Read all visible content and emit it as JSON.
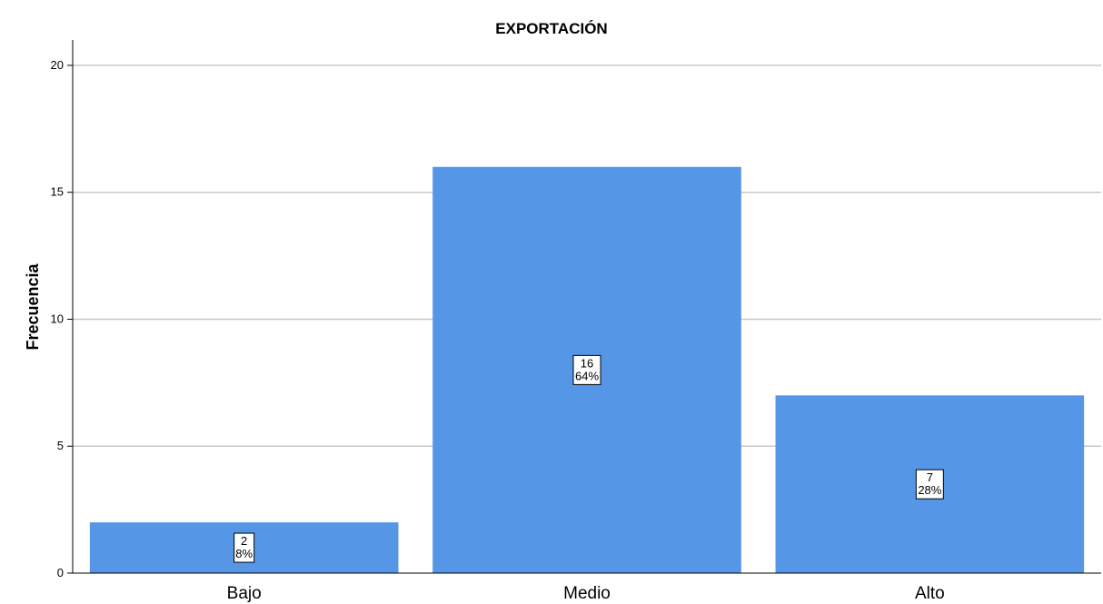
{
  "chart_data": {
    "type": "bar",
    "title": "EXPORTACIÓN",
    "xlabel": "",
    "ylabel": "Frecuencia",
    "categories": [
      "Bajo",
      "Medio",
      "Alto"
    ],
    "values": [
      2,
      16,
      7
    ],
    "percent_labels": [
      "8%",
      "64%",
      "28%"
    ],
    "ylim": [
      0,
      21
    ],
    "yticks": [
      0,
      5,
      10,
      15,
      20
    ],
    "grid": true,
    "legend": "none",
    "bar_color": "#5596e6",
    "grid_color": "#c8c8c8"
  }
}
